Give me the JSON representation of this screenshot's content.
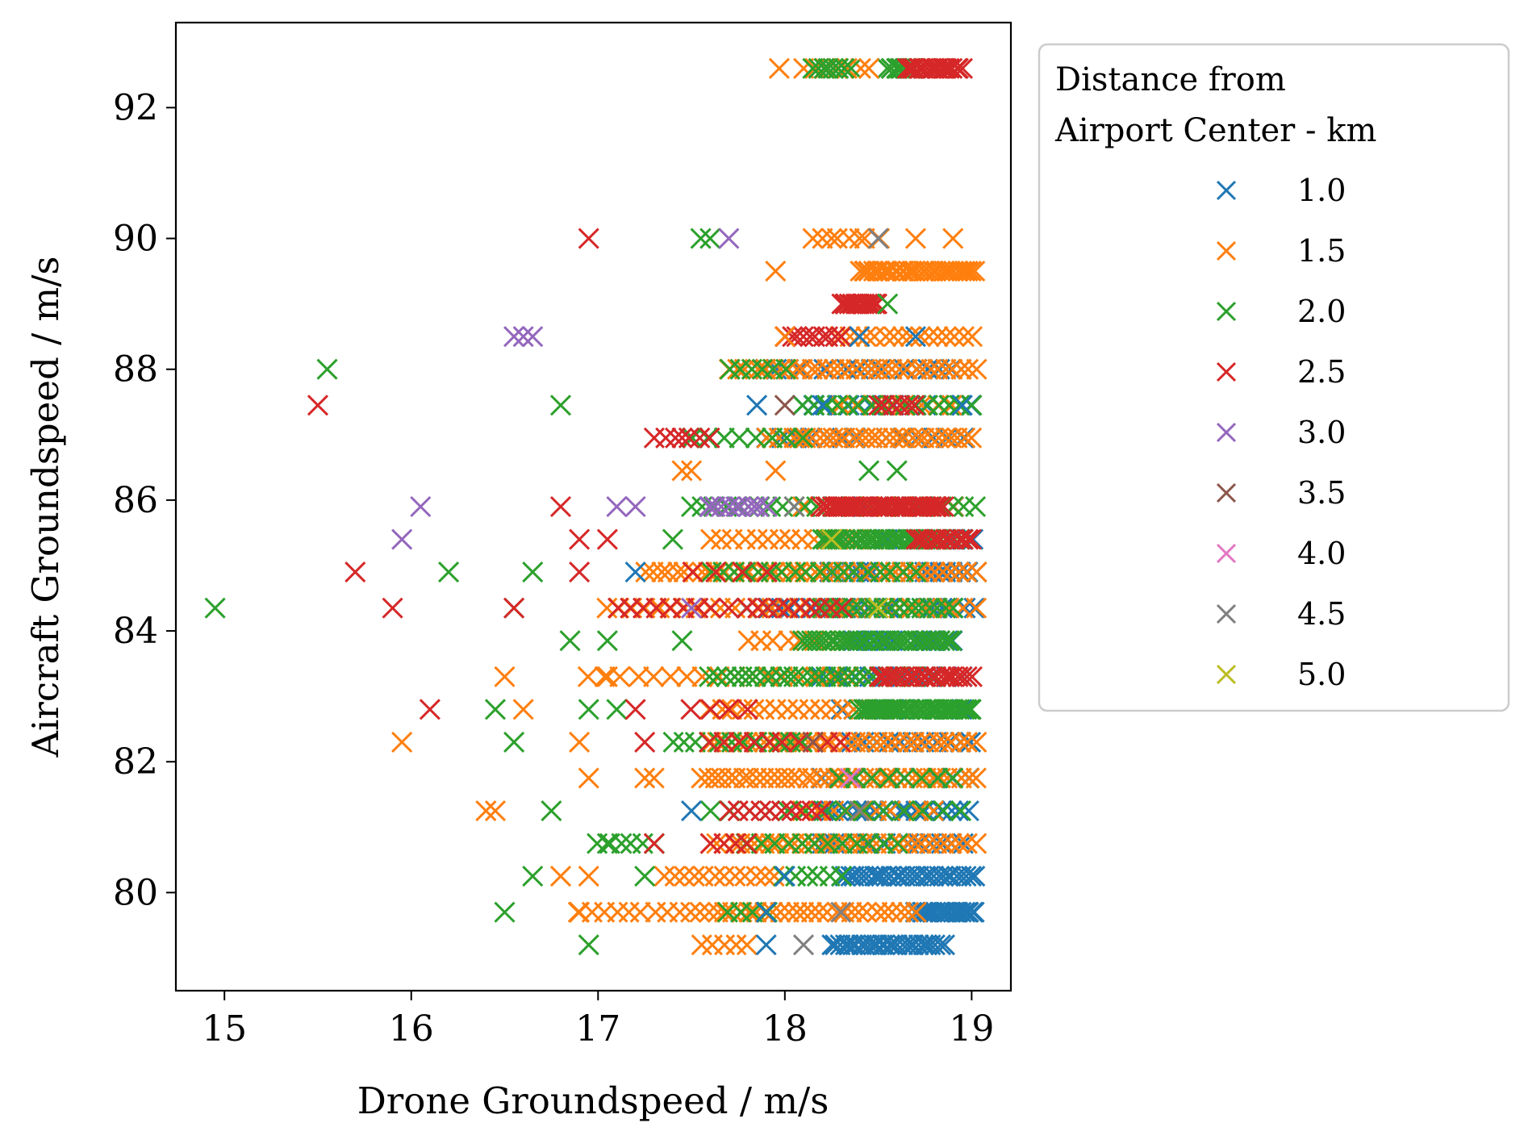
{
  "chart_data": {
    "type": "scatter",
    "xlabel": "Drone Groundspeed / m/s",
    "ylabel": "Aircraft Groundspeed / m/s",
    "xlim": [
      14.74,
      19.21
    ],
    "ylim": [
      78.5,
      93.3
    ],
    "xticks": [
      "15",
      "16",
      "17",
      "18",
      "19"
    ],
    "yticks": [
      "80",
      "82",
      "84",
      "86",
      "88",
      "90",
      "92"
    ],
    "grid": false,
    "marker": "x",
    "legend": {
      "title_lines": [
        "Distance from",
        "Airport Center - km"
      ],
      "placement": "outside-right-top"
    },
    "y_levels": [
      79.2,
      79.7,
      80.25,
      80.75,
      81.25,
      81.75,
      82.3,
      82.8,
      83.3,
      83.85,
      84.35,
      84.9,
      85.4,
      85.9,
      86.45,
      86.95,
      87.45,
      88.0,
      88.5,
      89.0,
      89.5,
      90.0,
      92.6
    ],
    "series": [
      {
        "name": "1.0",
        "color": "#1f77b4",
        "points": [
          [
            17.2,
            84.9
          ],
          [
            17.5,
            81.25
          ],
          [
            17.85,
            87.45
          ],
          [
            17.9,
            79.2
          ],
          [
            17.9,
            79.7
          ],
          [
            18.0,
            80.25
          ],
          [
            18.2,
            87.45
          ],
          [
            18.4,
            88.5
          ],
          [
            18.7,
            88.5
          ],
          [
            18.95,
            87.45
          ]
        ],
        "bands": [
          [
            79.2,
            18.25,
            18.85,
            28
          ],
          [
            79.7,
            18.7,
            19.02,
            22
          ],
          [
            80.25,
            18.3,
            19.02,
            30
          ],
          [
            80.75,
            18.2,
            18.95,
            14
          ],
          [
            81.25,
            18.2,
            18.98,
            18
          ],
          [
            81.75,
            18.2,
            18.98,
            10
          ],
          [
            82.3,
            18.3,
            19.0,
            12
          ],
          [
            82.8,
            18.3,
            18.95,
            10
          ],
          [
            83.3,
            18.2,
            18.95,
            10
          ],
          [
            83.85,
            18.3,
            18.9,
            18
          ],
          [
            84.35,
            17.8,
            19.02,
            22
          ],
          [
            84.9,
            18.2,
            19.02,
            22
          ],
          [
            85.4,
            18.5,
            19.0,
            10
          ],
          [
            85.9,
            18.1,
            18.9,
            6
          ],
          [
            86.95,
            17.9,
            18.95,
            14
          ],
          [
            87.45,
            18.1,
            19.0,
            16
          ],
          [
            88.0,
            17.9,
            18.95,
            18
          ]
        ]
      },
      {
        "name": "1.5",
        "color": "#ff7f0e",
        "points": [
          [
            15.95,
            82.3
          ],
          [
            16.4,
            81.25
          ],
          [
            16.45,
            81.25
          ],
          [
            16.5,
            83.3
          ],
          [
            16.6,
            82.8
          ],
          [
            16.8,
            80.25
          ],
          [
            16.9,
            79.7
          ],
          [
            16.9,
            82.3
          ],
          [
            16.95,
            80.25
          ],
          [
            16.95,
            81.75
          ],
          [
            17.05,
            83.3
          ],
          [
            17.25,
            81.75
          ],
          [
            17.3,
            81.75
          ],
          [
            17.45,
            86.45
          ],
          [
            17.5,
            86.45
          ],
          [
            17.95,
            86.45
          ],
          [
            17.95,
            89.5
          ],
          [
            17.97,
            92.6
          ],
          [
            18.0,
            88.5
          ],
          [
            18.15,
            90.0
          ],
          [
            18.25,
            90.0
          ],
          [
            18.4,
            90.0
          ],
          [
            18.45,
            92.6
          ],
          [
            18.7,
            90.0
          ],
          [
            18.9,
            90.0
          ]
        ],
        "bands": [
          [
            79.2,
            17.55,
            17.8,
            5
          ],
          [
            79.7,
            16.9,
            17.5,
            10
          ],
          [
            79.7,
            17.55,
            18.7,
            28
          ],
          [
            80.25,
            17.35,
            17.95,
            12
          ],
          [
            80.75,
            17.6,
            19.02,
            36
          ],
          [
            81.25,
            18.1,
            18.8,
            10
          ],
          [
            81.75,
            17.55,
            19.02,
            40
          ],
          [
            82.3,
            17.6,
            19.02,
            36
          ],
          [
            82.8,
            17.6,
            18.6,
            18
          ],
          [
            83.3,
            16.95,
            18.6,
            20
          ],
          [
            83.85,
            17.8,
            18.3,
            8
          ],
          [
            84.35,
            17.05,
            19.02,
            30
          ],
          [
            84.9,
            17.25,
            19.02,
            42
          ],
          [
            85.4,
            17.6,
            18.9,
            22
          ],
          [
            85.9,
            18.1,
            18.9,
            10
          ],
          [
            86.95,
            17.9,
            19.0,
            32
          ],
          [
            87.45,
            18.3,
            18.9,
            8
          ],
          [
            88.0,
            17.7,
            19.02,
            34
          ],
          [
            88.5,
            18.3,
            19.0,
            16
          ],
          [
            89.5,
            18.4,
            19.02,
            34
          ],
          [
            90.0,
            18.2,
            18.5,
            5
          ],
          [
            92.6,
            18.1,
            18.4,
            6
          ]
        ]
      },
      {
        "name": "2.0",
        "color": "#2ca02c",
        "points": [
          [
            14.95,
            84.35
          ],
          [
            15.55,
            88.0
          ],
          [
            16.2,
            84.9
          ],
          [
            16.45,
            82.8
          ],
          [
            16.5,
            79.7
          ],
          [
            16.55,
            82.3
          ],
          [
            16.55,
            84.35
          ],
          [
            16.65,
            80.25
          ],
          [
            16.65,
            84.9
          ],
          [
            16.75,
            81.25
          ],
          [
            16.8,
            87.45
          ],
          [
            16.85,
            83.85
          ],
          [
            16.95,
            79.2
          ],
          [
            16.95,
            82.8
          ],
          [
            17.05,
            83.85
          ],
          [
            17.05,
            80.75
          ],
          [
            17.1,
            82.8
          ],
          [
            17.25,
            80.25
          ],
          [
            17.4,
            85.4
          ],
          [
            17.45,
            83.85
          ],
          [
            17.55,
            90.0
          ],
          [
            17.6,
            90.0
          ],
          [
            18.55,
            89.0
          ],
          [
            18.45,
            86.45
          ],
          [
            18.6,
            86.45
          ]
        ],
        "bands": [
          [
            79.7,
            17.7,
            17.9,
            4
          ],
          [
            80.25,
            18.0,
            18.3,
            6
          ],
          [
            80.75,
            17.0,
            17.3,
            6
          ],
          [
            80.75,
            17.8,
            18.6,
            12
          ],
          [
            81.25,
            17.6,
            18.95,
            14
          ],
          [
            81.75,
            18.3,
            18.9,
            8
          ],
          [
            82.3,
            17.4,
            18.1,
            12
          ],
          [
            82.8,
            18.4,
            19.0,
            40
          ],
          [
            83.3,
            17.6,
            18.8,
            30
          ],
          [
            83.85,
            18.1,
            18.9,
            34
          ],
          [
            84.35,
            18.2,
            18.9,
            18
          ],
          [
            84.9,
            17.6,
            18.7,
            18
          ],
          [
            85.4,
            18.2,
            18.95,
            36
          ],
          [
            85.9,
            17.5,
            19.02,
            26
          ],
          [
            86.95,
            17.5,
            18.1,
            8
          ],
          [
            87.45,
            18.1,
            19.0,
            16
          ],
          [
            88.0,
            17.7,
            18.0,
            6
          ],
          [
            92.6,
            18.15,
            18.35,
            8
          ],
          [
            92.6,
            18.55,
            18.7,
            12
          ]
        ]
      },
      {
        "name": "2.5",
        "color": "#d62728",
        "points": [
          [
            15.5,
            87.45
          ],
          [
            15.7,
            84.9
          ],
          [
            15.9,
            84.35
          ],
          [
            16.1,
            82.8
          ],
          [
            16.55,
            84.35
          ],
          [
            16.8,
            85.9
          ],
          [
            16.9,
            84.9
          ],
          [
            16.9,
            85.4
          ],
          [
            16.95,
            90.0
          ],
          [
            17.05,
            85.4
          ],
          [
            17.2,
            82.8
          ],
          [
            17.25,
            82.3
          ],
          [
            17.3,
            80.75
          ],
          [
            17.45,
            86.95
          ],
          [
            17.7,
            84.35
          ]
        ],
        "bands": [
          [
            80.75,
            17.6,
            17.8,
            4
          ],
          [
            81.25,
            17.7,
            18.2,
            10
          ],
          [
            82.3,
            17.6,
            18.3,
            10
          ],
          [
            82.8,
            17.5,
            17.8,
            4
          ],
          [
            83.3,
            18.5,
            19.0,
            22
          ],
          [
            84.35,
            17.1,
            17.6,
            8
          ],
          [
            84.35,
            17.8,
            18.3,
            10
          ],
          [
            84.9,
            17.5,
            17.9,
            4
          ],
          [
            85.4,
            18.7,
            19.0,
            14
          ],
          [
            85.9,
            18.2,
            18.85,
            42
          ],
          [
            86.95,
            17.3,
            17.6,
            6
          ],
          [
            87.45,
            18.5,
            18.7,
            6
          ],
          [
            88.5,
            18.0,
            18.3,
            10
          ],
          [
            89.0,
            18.3,
            18.5,
            14
          ],
          [
            92.6,
            18.65,
            18.95,
            20
          ]
        ]
      },
      {
        "name": "3.0",
        "color": "#9467bd",
        "points": [
          [
            15.95,
            85.4
          ],
          [
            16.05,
            85.9
          ],
          [
            16.55,
            88.5
          ],
          [
            16.6,
            88.5
          ],
          [
            16.65,
            88.5
          ],
          [
            17.1,
            85.9
          ],
          [
            17.2,
            85.9
          ],
          [
            17.5,
            84.35
          ],
          [
            17.6,
            85.9
          ],
          [
            17.7,
            90.0
          ]
        ],
        "bands": [
          [
            85.9,
            17.6,
            17.9,
            10
          ]
        ]
      },
      {
        "name": "3.5",
        "color": "#8c564b",
        "points": [
          [
            18.0,
            87.45
          ],
          [
            18.15,
            82.3
          ]
        ],
        "bands": []
      },
      {
        "name": "4.0",
        "color": "#e377c2",
        "points": [
          [
            18.35,
            81.75
          ]
        ],
        "bands": []
      },
      {
        "name": "4.5",
        "color": "#7f7f7f",
        "points": [
          [
            18.1,
            79.2
          ],
          [
            18.3,
            79.7
          ],
          [
            18.5,
            90.0
          ],
          [
            18.4,
            81.25
          ],
          [
            18.05,
            85.9
          ]
        ],
        "bands": []
      },
      {
        "name": "5.0",
        "color": "#bcbd22",
        "points": [
          [
            18.25,
            85.4
          ],
          [
            18.5,
            84.35
          ]
        ],
        "bands": []
      }
    ]
  }
}
